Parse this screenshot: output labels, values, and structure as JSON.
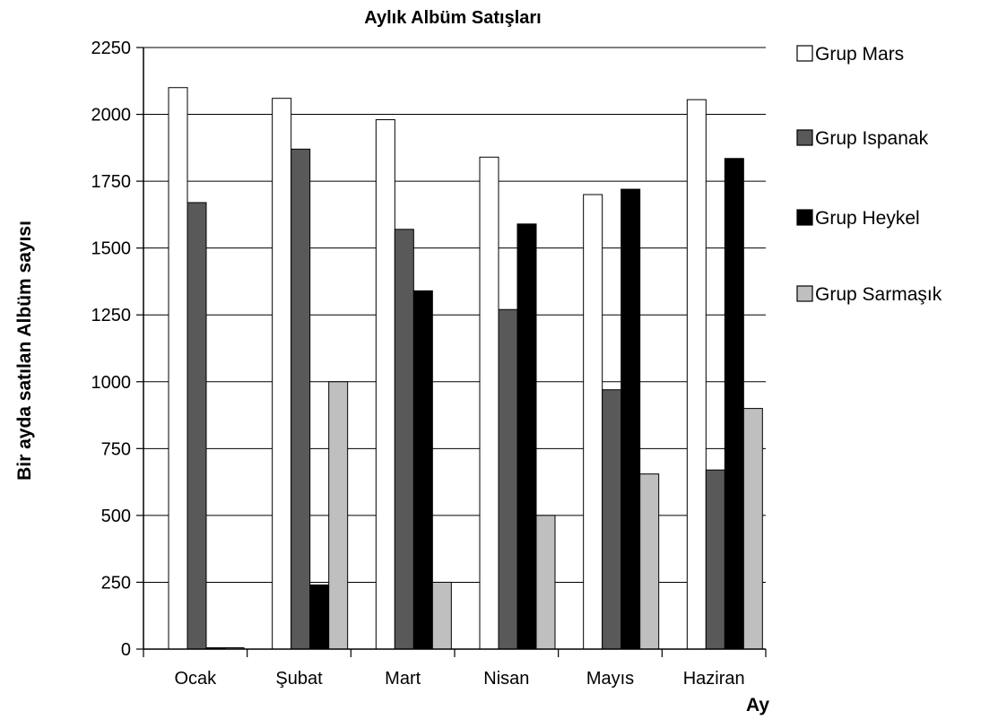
{
  "chart_data": {
    "type": "bar",
    "title": "Aylık Albüm Satışları",
    "xlabel": "Ay",
    "ylabel": "Bir ayda satılan Albüm sayısı",
    "categories": [
      "Ocak",
      "Şubat",
      "Mart",
      "Nisan",
      "Mayıs",
      "Haziran"
    ],
    "ylim": [
      0,
      2250
    ],
    "yticks": [
      0,
      250,
      500,
      750,
      1000,
      1250,
      1500,
      1750,
      2000,
      2250
    ],
    "grid": true,
    "legend_position": "right",
    "series": [
      {
        "name": "Grup Mars",
        "color": "#ffffff",
        "values": [
          2100,
          2060,
          1980,
          1840,
          1700,
          2055
        ]
      },
      {
        "name": "Grup Ispanak",
        "color": "#595959",
        "values": [
          1670,
          1870,
          1570,
          1270,
          970,
          670
        ]
      },
      {
        "name": "Grup Heykel",
        "color": "#000000",
        "values": [
          0,
          240,
          1340,
          1590,
          1720,
          1835
        ]
      },
      {
        "name": "Grup Sarmaşık",
        "color": "#bfbfbf",
        "values": [
          0,
          1000,
          250,
          500,
          655,
          900
        ]
      }
    ]
  }
}
